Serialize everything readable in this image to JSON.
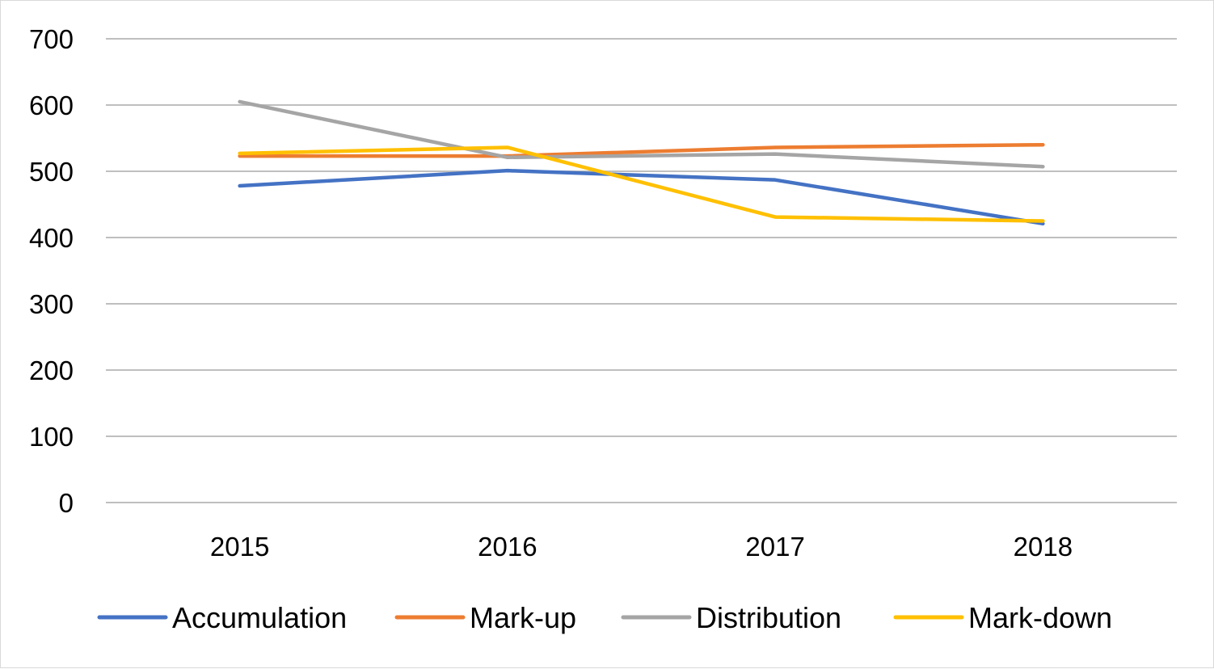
{
  "chart_data": {
    "type": "line",
    "categories": [
      "2015",
      "2016",
      "2017",
      "2018"
    ],
    "ylim": [
      0,
      700
    ],
    "yticks": [
      0,
      100,
      200,
      300,
      400,
      500,
      600,
      700
    ],
    "grid": true,
    "legend_position": "bottom",
    "series": [
      {
        "name": "Accumulation",
        "color": "#4472c4",
        "values": [
          478,
          501,
          487,
          421
        ]
      },
      {
        "name": "Mark-up",
        "color": "#ed7d31",
        "values": [
          523,
          523,
          536,
          540
        ]
      },
      {
        "name": "Distribution",
        "color": "#a5a5a5",
        "values": [
          605,
          521,
          526,
          507
        ]
      },
      {
        "name": "Mark-down",
        "color": "#ffc000",
        "values": [
          527,
          536,
          431,
          425
        ]
      }
    ]
  }
}
